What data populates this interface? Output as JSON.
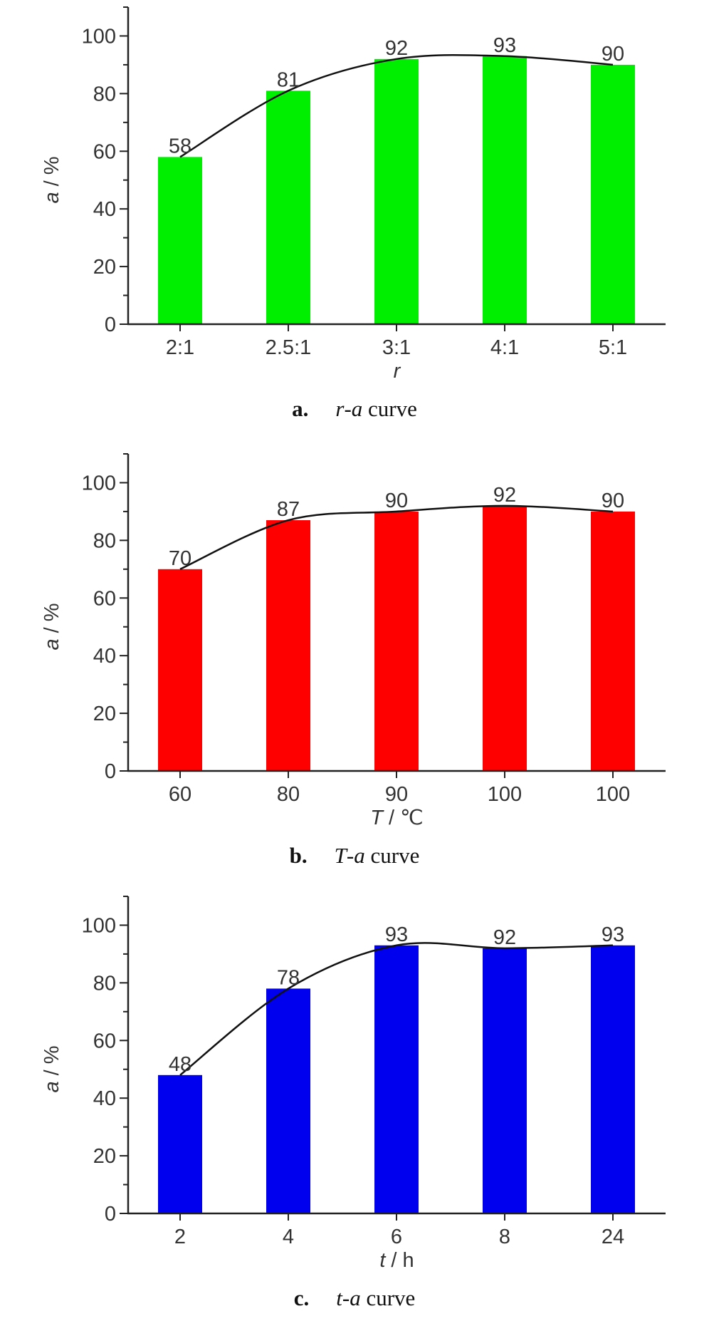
{
  "chart_data": [
    {
      "type": "bar",
      "categories": [
        "2:1",
        "2.5:1",
        "3:1",
        "4:1",
        "5:1"
      ],
      "values": [
        58,
        81,
        92,
        93,
        90
      ],
      "data_labels": [
        "58",
        "81",
        "92",
        "93",
        "90"
      ],
      "ylim": [
        0,
        110
      ],
      "yticks": [
        "0",
        "20",
        "40",
        "60",
        "80",
        "100"
      ],
      "ylabel": {
        "var": "a",
        "unit": " / %"
      },
      "xlabel": {
        "var": "r",
        "unit": ""
      },
      "bar_color": "#00ee00",
      "trend_curve": true,
      "caption": {
        "letter": "a.",
        "var1": "r",
        "dash": "-",
        "var2": "a",
        "rest": " curve"
      }
    },
    {
      "type": "bar",
      "categories": [
        "60",
        "80",
        "90",
        "100",
        "100"
      ],
      "values": [
        70,
        87,
        90,
        92,
        90
      ],
      "data_labels": [
        "70",
        "87",
        "90",
        "92",
        "90"
      ],
      "ylim": [
        0,
        110
      ],
      "yticks": [
        "0",
        "20",
        "40",
        "60",
        "80",
        "100"
      ],
      "ylabel": {
        "var": "a",
        "unit": " / %"
      },
      "xlabel": {
        "var": "T",
        "unit": " / ℃"
      },
      "bar_color": "#ff0000",
      "trend_curve": true,
      "caption": {
        "letter": "b.",
        "var1": "T",
        "dash": "-",
        "var2": "a",
        "rest": " curve"
      }
    },
    {
      "type": "bar",
      "categories": [
        "2",
        "4",
        "6",
        "8",
        "24"
      ],
      "values": [
        48,
        78,
        93,
        92,
        93
      ],
      "data_labels": [
        "48",
        "78",
        "93",
        "92",
        "93"
      ],
      "ylim": [
        0,
        110
      ],
      "yticks": [
        "0",
        "20",
        "40",
        "60",
        "80",
        "100"
      ],
      "ylabel": {
        "var": "a",
        "unit": " / %"
      },
      "xlabel": {
        "var": "t",
        "unit": " / h"
      },
      "bar_color": "#0000ee",
      "trend_curve": true,
      "caption": {
        "letter": "c.",
        "var1": "t",
        "dash": "-",
        "var2": "a",
        "rest": " curve"
      }
    }
  ]
}
